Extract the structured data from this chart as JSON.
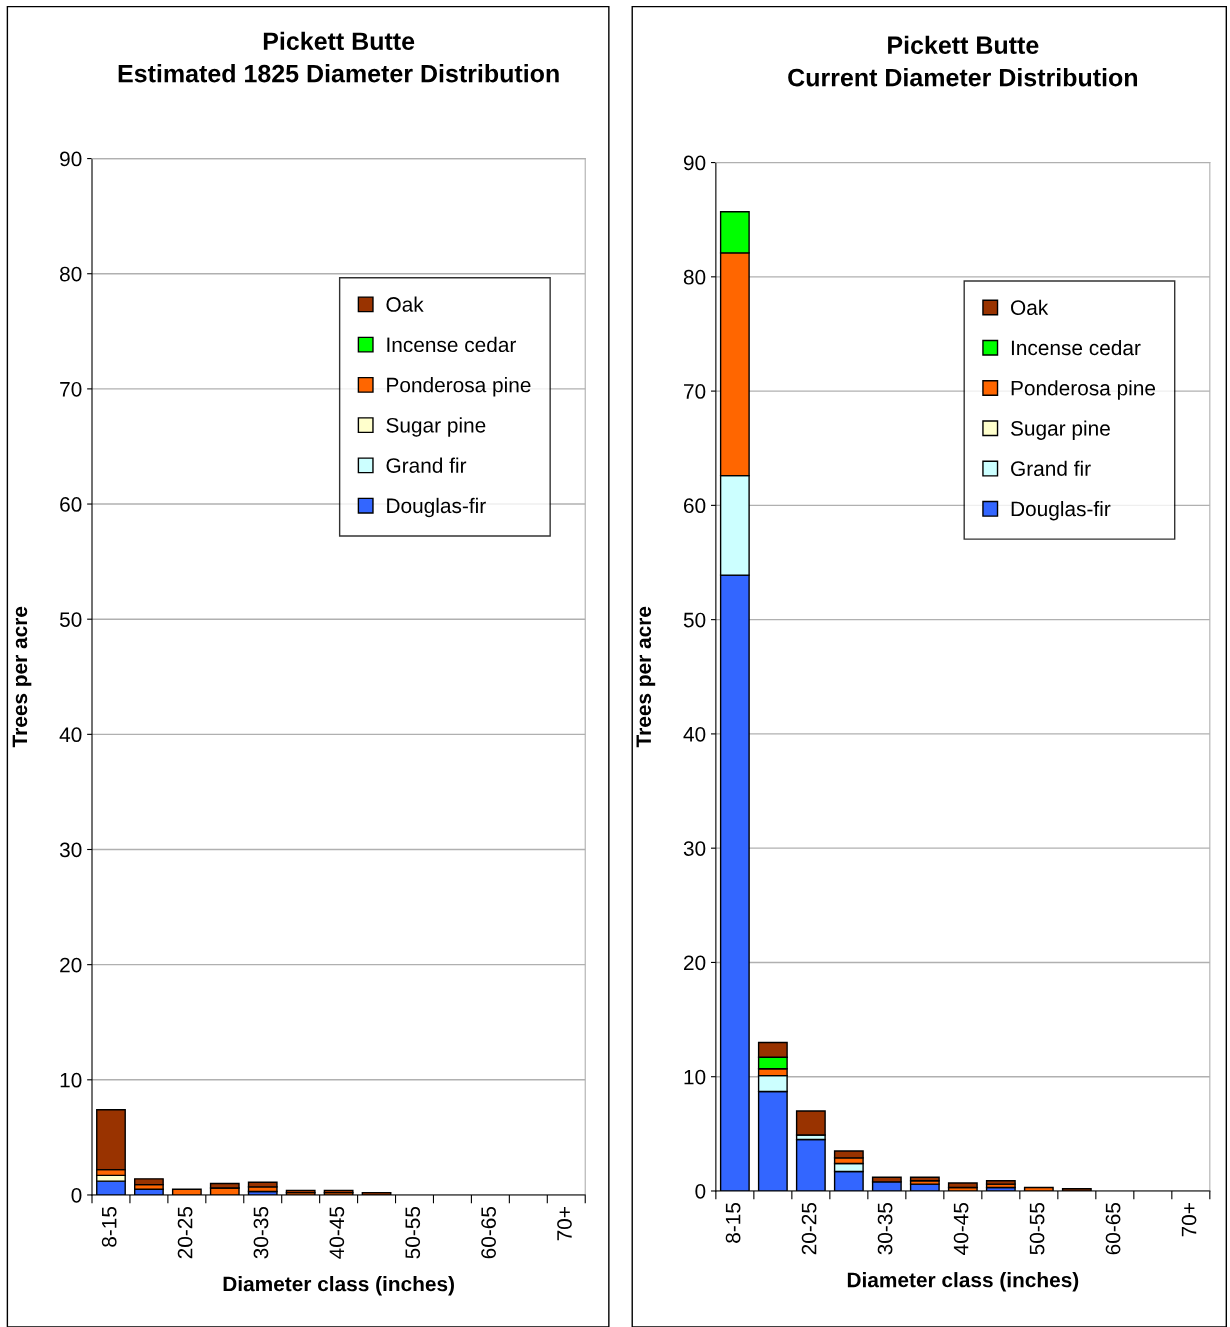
{
  "chart_data": [
    {
      "type": "bar",
      "stacked": true,
      "title": "Pickett Butte\nEstimated 1825 Diameter Distribution",
      "xlabel": "Diameter class (inches)",
      "ylabel": "Trees per acre",
      "categories": [
        "8-15",
        null,
        "20-25",
        null,
        "30-35",
        null,
        "40-45",
        null,
        "50-55",
        null,
        "60-65",
        null,
        "70+"
      ],
      "series": [
        {
          "name": "Douglas-fir",
          "color": "#3366ff",
          "values": [
            1.2,
            0.5,
            null,
            null,
            0.3,
            null,
            null,
            null,
            null,
            null,
            null,
            null,
            null
          ]
        },
        {
          "name": "Grand fir",
          "color": "#ccffff",
          "values": [
            null,
            null,
            null,
            null,
            null,
            null,
            null,
            null,
            null,
            null,
            null,
            null,
            null
          ]
        },
        {
          "name": "Sugar pine",
          "color": "#ffffcc",
          "values": [
            0.5,
            null,
            null,
            null,
            null,
            null,
            null,
            null,
            null,
            null,
            null,
            null,
            null
          ]
        },
        {
          "name": "Ponderosa pine",
          "color": "#ff6600",
          "values": [
            0.5,
            0.4,
            0.5,
            0.6,
            0.4,
            0.2,
            0.2,
            null,
            null,
            null,
            null,
            null,
            null
          ]
        },
        {
          "name": "Incense cedar",
          "color": "#00ff00",
          "values": [
            null,
            null,
            null,
            null,
            null,
            null,
            null,
            null,
            null,
            null,
            null,
            null,
            null
          ]
        },
        {
          "name": "Oak",
          "color": "#993300",
          "values": [
            5.2,
            0.5,
            null,
            0.4,
            0.4,
            0.2,
            0.2,
            0.2,
            null,
            null,
            null,
            null,
            null
          ]
        }
      ],
      "ylim": [
        0,
        90
      ],
      "yticks": [
        0,
        10,
        20,
        30,
        40,
        50,
        60,
        70,
        80,
        90
      ],
      "grid": "y",
      "legend": "top right"
    },
    {
      "type": "bar",
      "stacked": true,
      "title": "Pickett Butte\nCurrent Diameter Distribution",
      "xlabel": "Diameter class (inches)",
      "ylabel": "Trees per acre",
      "categories": [
        "8-15",
        null,
        "20-25",
        null,
        "30-35",
        null,
        "40-45",
        null,
        "50-55",
        null,
        "60-65",
        null,
        "70+"
      ],
      "series": [
        {
          "name": "Douglas-fir",
          "color": "#3366ff",
          "values": [
            53.9,
            8.7,
            4.5,
            1.7,
            0.8,
            0.6,
            null,
            0.3,
            null,
            null,
            null,
            null,
            null
          ]
        },
        {
          "name": "Grand fir",
          "color": "#ccffff",
          "values": [
            8.7,
            1.4,
            0.4,
            0.7,
            null,
            null,
            null,
            null,
            null,
            null,
            null,
            null,
            null
          ]
        },
        {
          "name": "Sugar pine",
          "color": "#ffffcc",
          "values": [
            null,
            null,
            null,
            null,
            null,
            null,
            null,
            null,
            null,
            null,
            null,
            null,
            null
          ]
        },
        {
          "name": "Ponderosa pine",
          "color": "#ff6600",
          "values": [
            19.5,
            0.6,
            null,
            0.5,
            null,
            0.3,
            0.3,
            0.3,
            0.3,
            null,
            null,
            null,
            null
          ]
        },
        {
          "name": "Incense cedar",
          "color": "#00ff00",
          "values": [
            3.6,
            1.0,
            null,
            null,
            null,
            null,
            null,
            null,
            null,
            null,
            null,
            null,
            null
          ]
        },
        {
          "name": "Oak",
          "color": "#993300",
          "values": [
            null,
            1.3,
            2.1,
            0.6,
            0.4,
            0.3,
            0.4,
            0.3,
            null,
            0.2,
            null,
            null,
            null
          ]
        }
      ],
      "ylim": [
        0,
        90
      ],
      "yticks": [
        0,
        10,
        20,
        30,
        40,
        50,
        60,
        70,
        80,
        90
      ],
      "grid": "y",
      "legend": "top right"
    }
  ]
}
